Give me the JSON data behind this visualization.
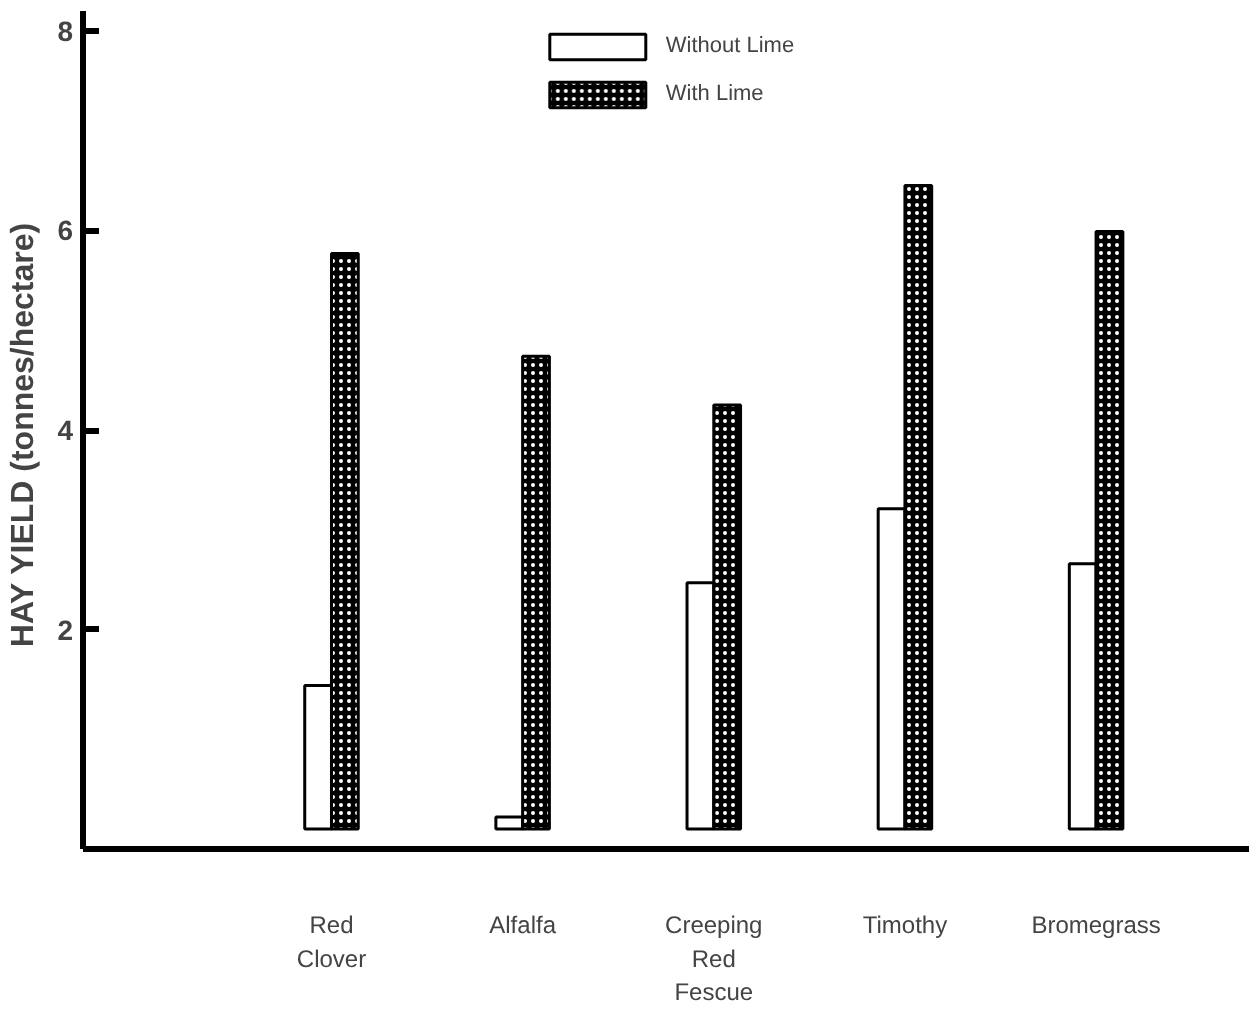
{
  "chart_data": {
    "type": "bar",
    "ylabel": "HAY YIELD  (tonnes/hectare)",
    "categories": [
      "Red\nClover",
      "Alfalfa",
      "Creeping\nRed\nFescue",
      "Timothy",
      "Bromegrass"
    ],
    "series": [
      {
        "name": "Without Lime",
        "color": "#ffffff",
        "values": [
          1.44,
          0.12,
          2.47,
          3.21,
          2.66
        ]
      },
      {
        "name": "With Lime",
        "color": "#000000",
        "values": [
          5.77,
          4.74,
          4.25,
          6.45,
          5.99
        ]
      }
    ],
    "ylim": [
      -0.2,
      8.2
    ],
    "yticks": [
      2,
      4,
      6,
      8
    ],
    "grid": false,
    "legend": "top"
  }
}
